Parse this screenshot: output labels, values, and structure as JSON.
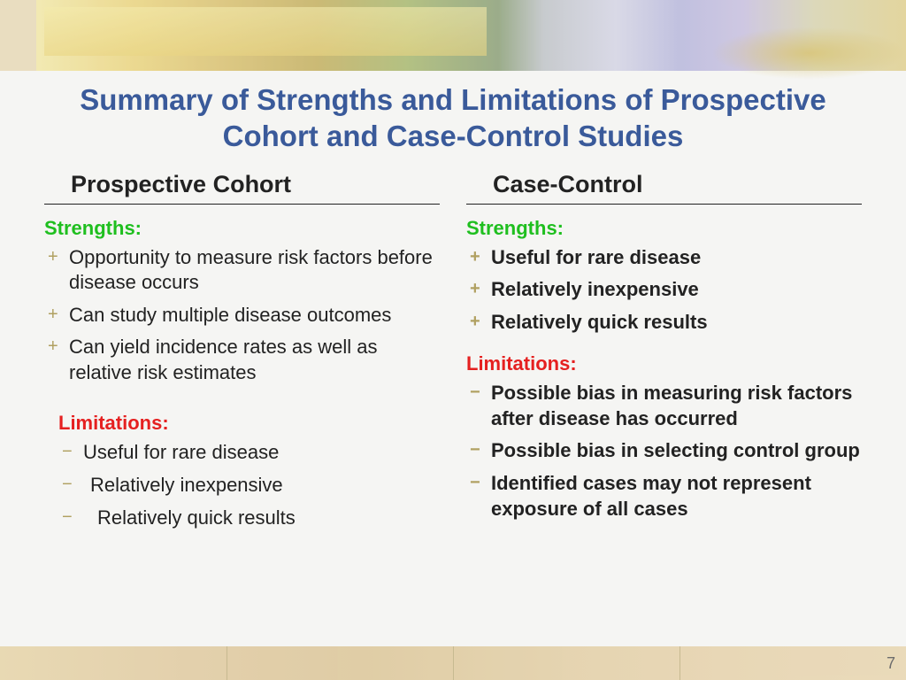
{
  "title": "Summary of Strengths and Limitations of Prospective Cohort and Case-Control Studies",
  "colors": {
    "title": "#3a5a9a",
    "strengths_label": "#1fbf1f",
    "limitations_label": "#e52020",
    "bullet_marker": "#b0a060",
    "body_text": "#222222",
    "background": "#f5f5f3"
  },
  "typography": {
    "title_fontsize": 33,
    "col_header_fontsize": 27,
    "section_label_fontsize": 22,
    "body_fontsize": 22,
    "font_family": "Arial"
  },
  "columns": {
    "left": {
      "header": "Prospective Cohort",
      "strengths": {
        "label": "Strengths:",
        "bold": false,
        "items": [
          "Opportunity to measure risk factors before disease occurs",
          "Can study multiple disease outcomes",
          "Can yield incidence rates as well as relative risk estimates"
        ]
      },
      "limitations": {
        "label": "Limitations:",
        "bold": false,
        "items": [
          "Useful for rare disease",
          "Relatively inexpensive",
          "Relatively quick results"
        ]
      }
    },
    "right": {
      "header": "Case-Control",
      "strengths": {
        "label": "Strengths:",
        "bold": true,
        "items": [
          "Useful for rare disease",
          "Relatively inexpensive",
          "Relatively quick results"
        ]
      },
      "limitations": {
        "label": "Limitations:",
        "bold": true,
        "items": [
          "Possible bias in measuring risk factors after disease has occurred",
          "Possible bias in selecting control group",
          "Identified cases may not represent exposure of all cases"
        ]
      }
    }
  },
  "page_number": "7"
}
